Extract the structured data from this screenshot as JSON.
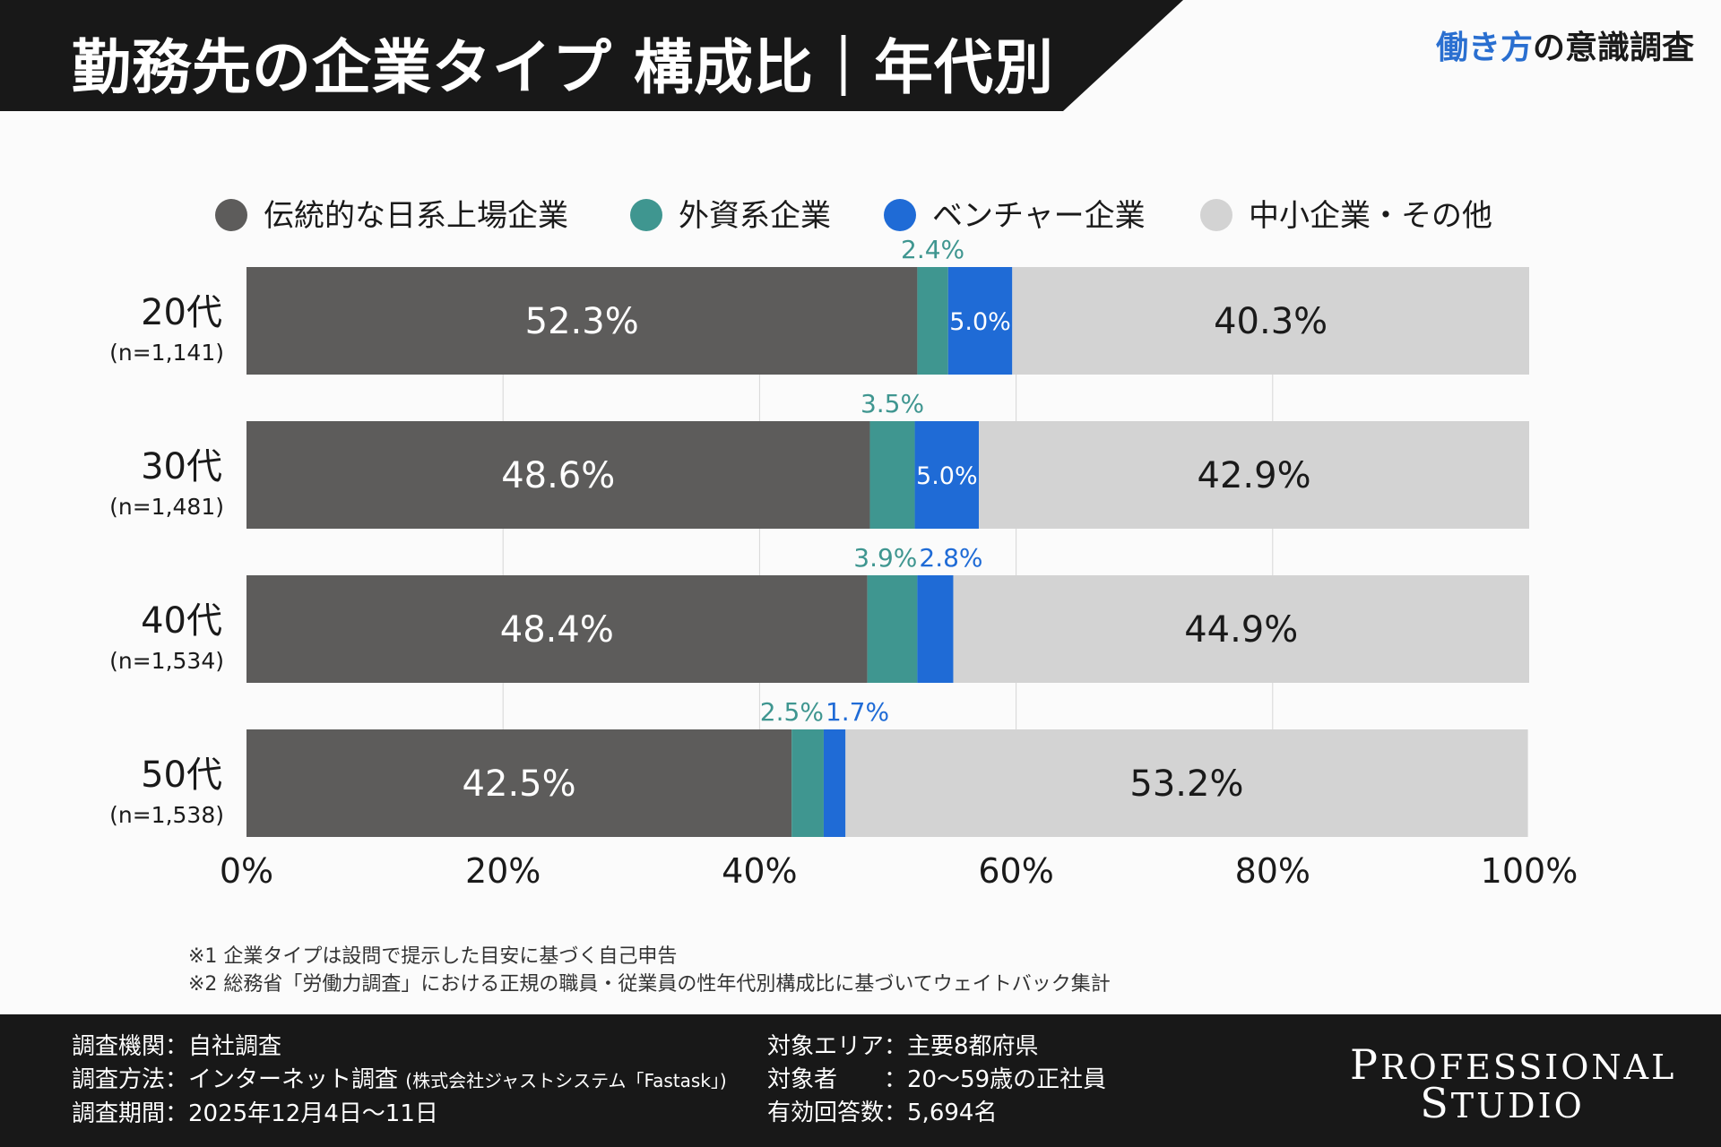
{
  "header": {
    "title": "勤務先の企業タイプ 構成比｜年代別",
    "brand_accent": "働き方",
    "brand_rest": "の意識調査"
  },
  "chart_data": {
    "type": "bar",
    "orientation": "horizontal",
    "stacked": true,
    "title": "勤務先の企業タイプ 構成比｜年代別",
    "categories": [
      "20代",
      "30代",
      "40代",
      "50代"
    ],
    "category_n": [
      "(n=1,141)",
      "(n=1,481)",
      "(n=1,534)",
      "(n=1,538)"
    ],
    "series": [
      {
        "name": "伝統的な日系上場企業",
        "color": "#5d5c5b",
        "values": [
          52.3,
          48.6,
          48.4,
          42.5
        ],
        "labels": [
          "52.3%",
          "48.6%",
          "48.4%",
          "42.5%"
        ]
      },
      {
        "name": "外資系企業",
        "color": "#3f9690",
        "values": [
          2.4,
          3.5,
          3.9,
          2.5
        ],
        "labels": [
          "2.4%",
          "3.5%",
          "3.9%",
          "2.5%"
        ]
      },
      {
        "name": "ベンチャー企業",
        "color": "#1f6bd6",
        "values": [
          5.0,
          5.0,
          2.8,
          1.7
        ],
        "labels": [
          "5.0%",
          "5.0%",
          "2.8%",
          "1.7%"
        ]
      },
      {
        "name": "中小企業・その他",
        "color": "#d3d3d3",
        "values": [
          40.3,
          42.9,
          44.9,
          53.2
        ],
        "labels": [
          "40.3%",
          "42.9%",
          "44.9%",
          "53.2%"
        ]
      }
    ],
    "xlim": [
      0,
      100
    ],
    "xticks": [
      "0%",
      "20%",
      "40%",
      "60%",
      "80%",
      "100%"
    ],
    "legend_position": "top",
    "grid": true
  },
  "notes": [
    "※1  企業タイプは設問で提示した目安に基づく自己申告",
    "※2  総務省「労働力調査」における正規の職員・従業員の性年代別構成比に基づいてウェイトバック集計"
  ],
  "footer": {
    "col1": [
      {
        "label": "調査機関：",
        "value": "自社調査",
        "small": ""
      },
      {
        "label": "調査方法：",
        "value": "インターネット調査 ",
        "small": "(株式会社ジャストシステム「Fastask」)"
      },
      {
        "label": "調査期間：",
        "value": "2025年12月4日〜11日",
        "small": ""
      }
    ],
    "col2": [
      {
        "label": "対象エリア：",
        "value": "主要8都府県"
      },
      {
        "label": "対象者　　：",
        "value": "20〜59歳の正社員"
      },
      {
        "label": "有効回答数：",
        "value": "5,694名"
      }
    ],
    "logo_line1": [
      "P",
      "ROFESSIONAL"
    ],
    "logo_line2": [
      "S",
      "TUDIO"
    ]
  }
}
